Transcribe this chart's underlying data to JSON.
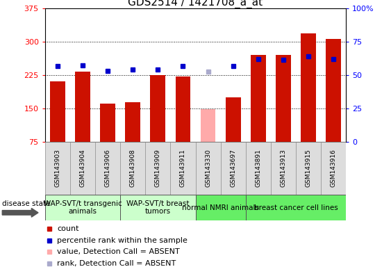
{
  "title": "GDS2514 / 1421708_a_at",
  "samples": [
    "GSM143903",
    "GSM143904",
    "GSM143906",
    "GSM143908",
    "GSM143909",
    "GSM143911",
    "GSM143330",
    "GSM143697",
    "GSM143891",
    "GSM143913",
    "GSM143915",
    "GSM143916"
  ],
  "count_values": [
    210,
    232,
    160,
    163,
    224,
    221,
    null,
    175,
    270,
    270,
    318,
    305
  ],
  "count_absent": [
    null,
    null,
    null,
    null,
    null,
    null,
    148,
    null,
    null,
    null,
    null,
    null
  ],
  "percentile_values": [
    245,
    246,
    234,
    236,
    237,
    245,
    null,
    244,
    260,
    259,
    267,
    260
  ],
  "percentile_absent": [
    null,
    null,
    null,
    null,
    null,
    null,
    232,
    null,
    null,
    null,
    null,
    null
  ],
  "ylim_left": [
    75,
    375
  ],
  "ylim_right": [
    0,
    100
  ],
  "yticks_left": [
    75,
    150,
    225,
    300,
    375
  ],
  "yticks_right": [
    0,
    25,
    50,
    75,
    100
  ],
  "ytick_labels_left": [
    "75",
    "150",
    "225",
    "300",
    "375"
  ],
  "ytick_labels_right": [
    "0",
    "25",
    "50",
    "75",
    "100%"
  ],
  "bar_color_present": "#cc1100",
  "bar_color_absent": "#ffaaaa",
  "dot_color_present": "#0000cc",
  "dot_color_absent": "#aaaacc",
  "group_boundaries": [
    {
      "start": 0,
      "end": 2,
      "label": "WAP-SVT/t transgenic\nanimals",
      "color": "#ccffcc"
    },
    {
      "start": 3,
      "end": 5,
      "label": "WAP-SVT/t breast\ntumors",
      "color": "#ccffcc"
    },
    {
      "start": 6,
      "end": 7,
      "label": "normal NMRI animals",
      "color": "#66ee66"
    },
    {
      "start": 8,
      "end": 11,
      "label": "breast cancer cell lines",
      "color": "#66ee66"
    }
  ],
  "legend_items": [
    {
      "label": "count",
      "color": "#cc1100"
    },
    {
      "label": "percentile rank within the sample",
      "color": "#0000cc"
    },
    {
      "label": "value, Detection Call = ABSENT",
      "color": "#ffaaaa"
    },
    {
      "label": "rank, Detection Call = ABSENT",
      "color": "#aaaacc"
    }
  ],
  "disease_state_label": "disease state",
  "title_fontsize": 11,
  "tick_fontsize": 8,
  "sample_fontsize": 6.5,
  "group_fontsize": 7.5,
  "legend_fontsize": 8
}
